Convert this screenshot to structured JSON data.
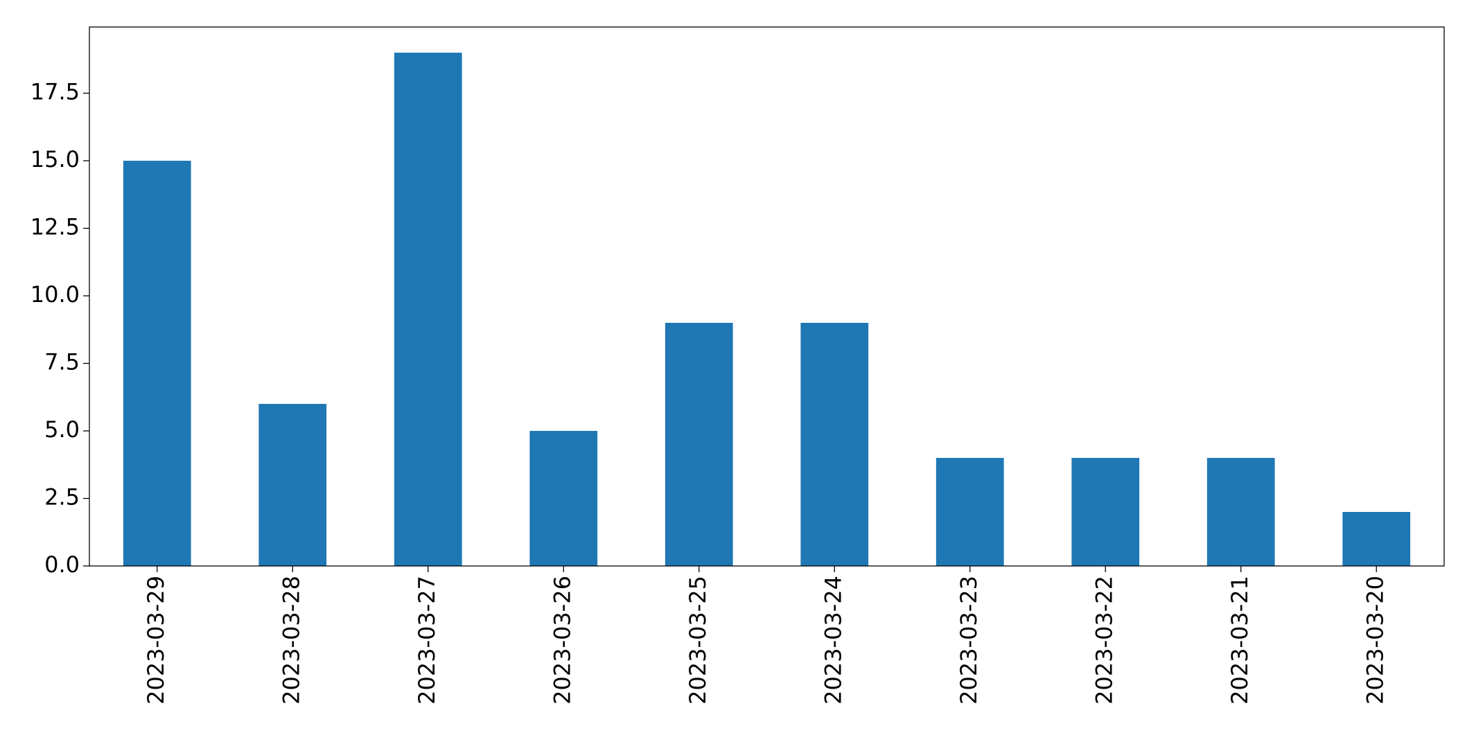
{
  "chart_data": {
    "type": "bar",
    "categories": [
      "2023-03-29",
      "2023-03-28",
      "2023-03-27",
      "2023-03-26",
      "2023-03-25",
      "2023-03-24",
      "2023-03-23",
      "2023-03-22",
      "2023-03-21",
      "2023-03-20"
    ],
    "values": [
      15,
      6,
      19,
      5,
      9,
      9,
      4,
      4,
      4,
      2
    ],
    "color": "#1f77b4",
    "ylim": [
      0,
      19.95
    ],
    "yticks": [
      {
        "value": 0,
        "label": "0.0"
      },
      2.5,
      {
        "value": 5,
        "label": "5.0"
      },
      7.5,
      {
        "value": 10,
        "label": "10.0"
      },
      12.5,
      {
        "value": 15,
        "label": "15.0"
      },
      17.5
    ],
    "grid": false
  }
}
